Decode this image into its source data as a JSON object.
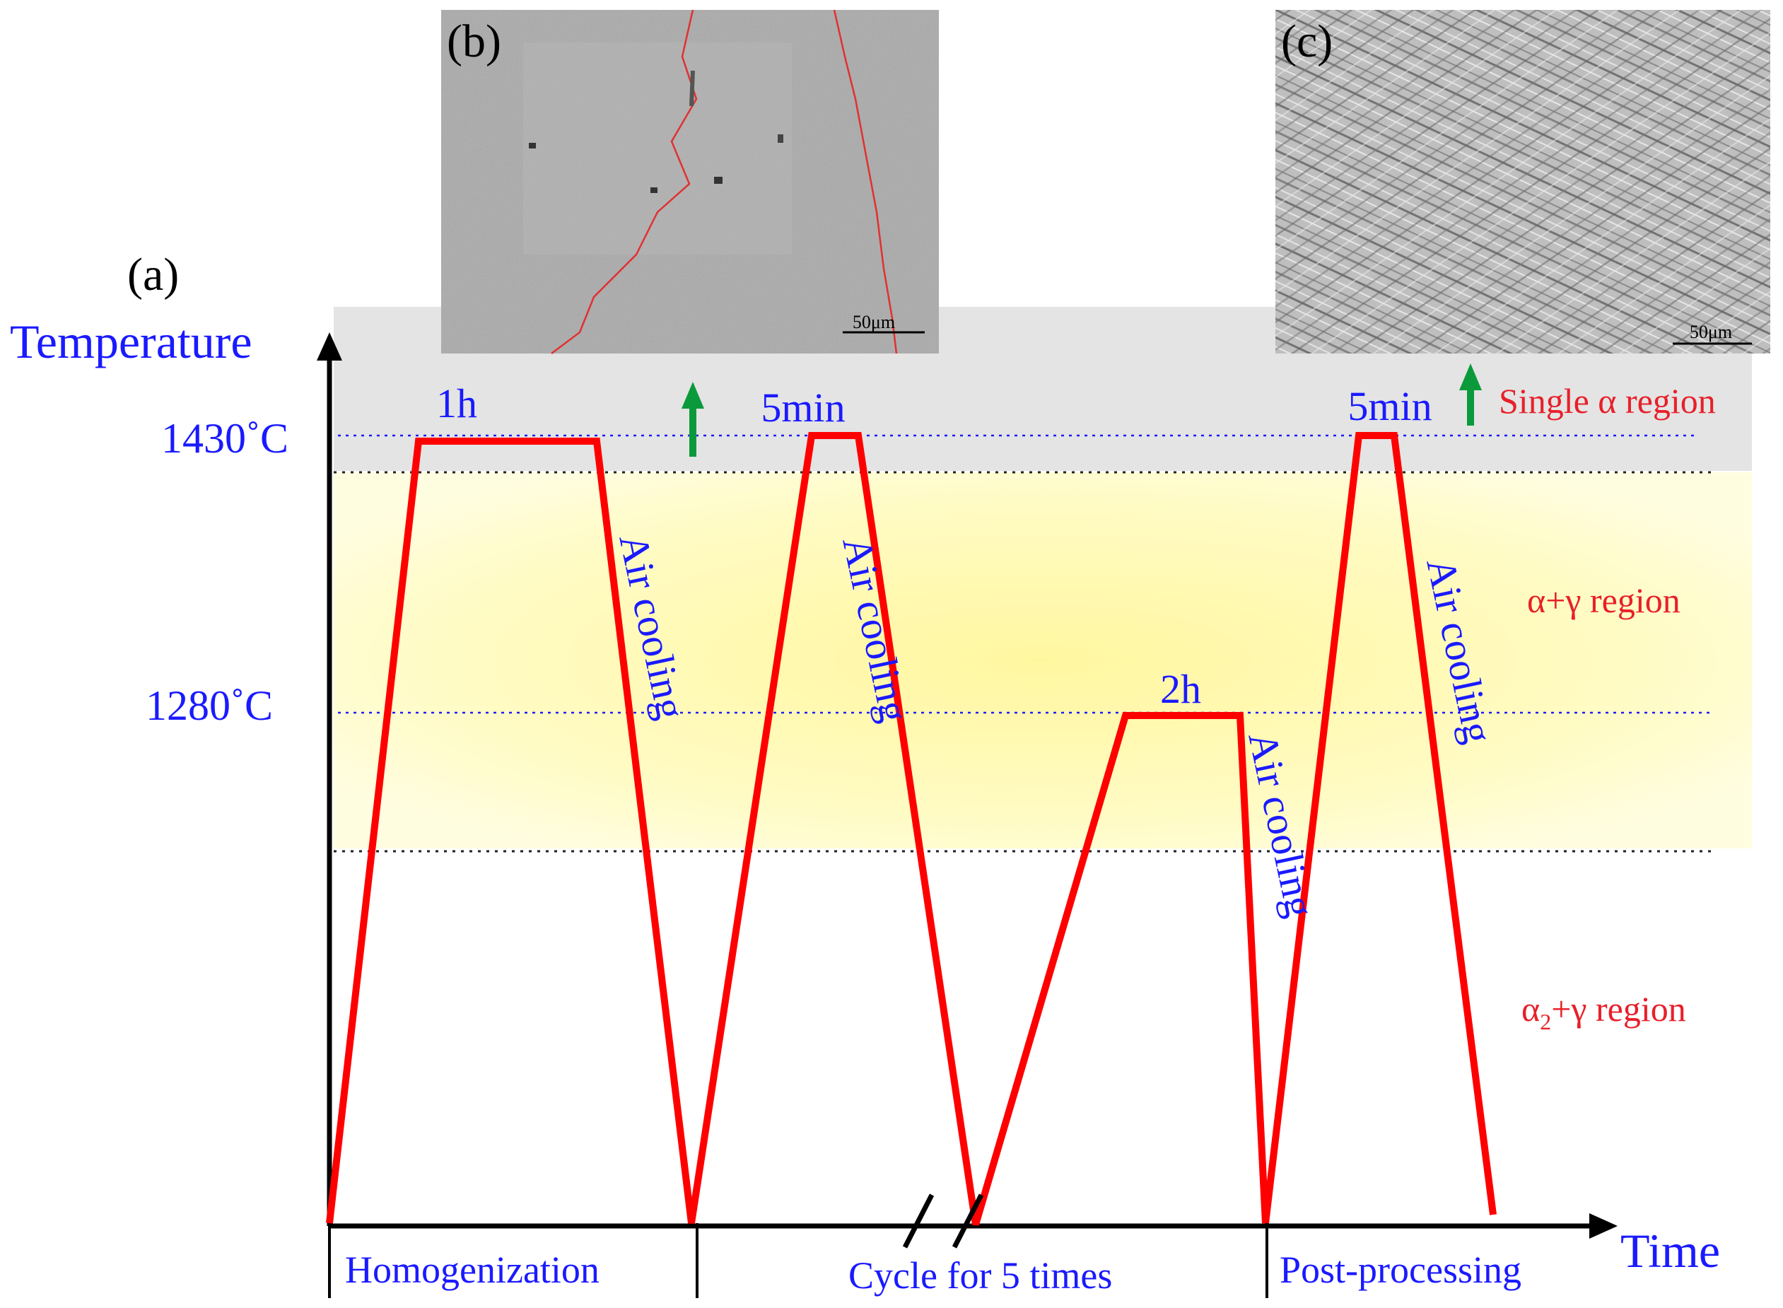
{
  "panel_labels": {
    "a": "(a)",
    "b": "(b)",
    "c": "(c)"
  },
  "axes": {
    "y_label": "Temperature",
    "x_label": "Time"
  },
  "temperatures": {
    "high": "1430˚C",
    "mid": "1280˚C"
  },
  "regions": {
    "single_alpha": "Single α region",
    "alpha_gamma": "α+γ region",
    "alpha2_gamma": {
      "base": "α",
      "sub": "2",
      "rest": "+γ region"
    }
  },
  "holds": {
    "h1": "1h",
    "h2": "5min",
    "h3": "2h",
    "h4": "5min"
  },
  "cooling": {
    "label": "Air cooling"
  },
  "stages": {
    "homogenization": "Homogenization",
    "cycle": "Cycle for 5 times",
    "post": "Post-processing"
  },
  "micrographs": {
    "scale_b": "50μm",
    "scale_c": "50μm"
  },
  "colors": {
    "curve": "#ff0000",
    "label_blue": "#1a1aff",
    "region_red": "#e8202a",
    "arrow_green": "#0a9a3c",
    "single_alpha_band": "#e4e4e4",
    "alpha_gamma_band": "#fff9b0"
  }
}
